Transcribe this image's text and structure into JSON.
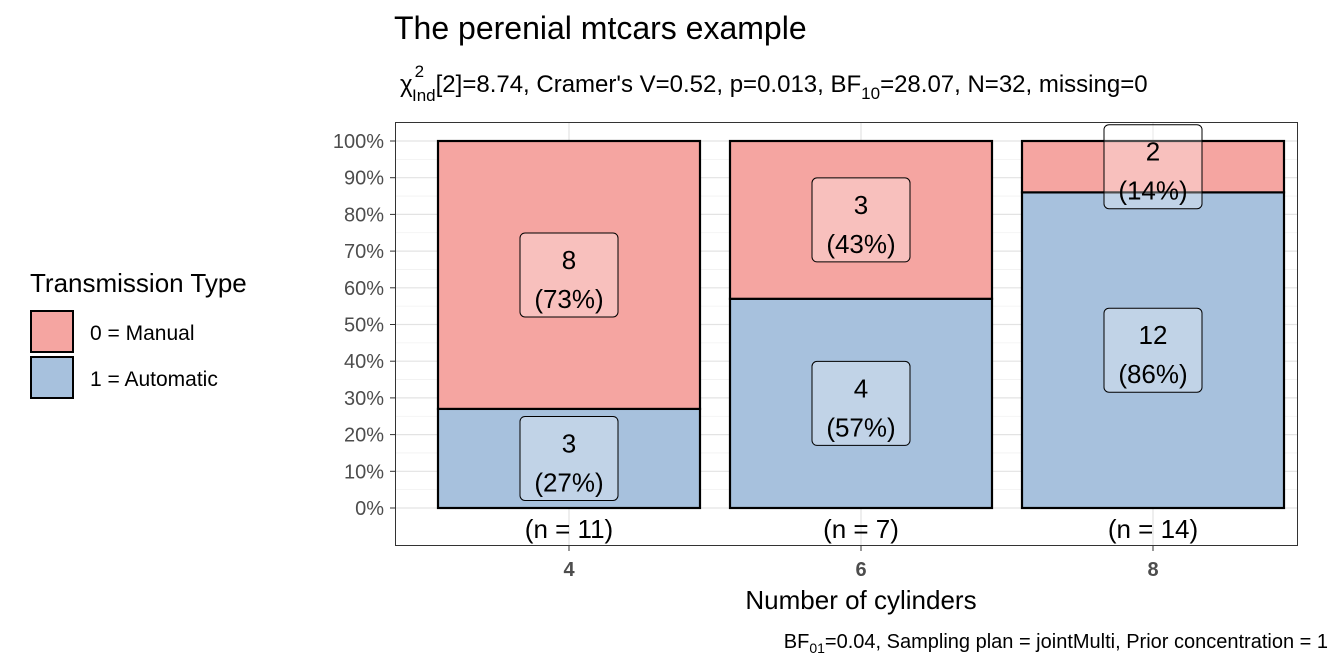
{
  "chart_data": {
    "type": "bar",
    "title": "The perenial mtcars example",
    "subtitle": {
      "chi": "χ",
      "chi_sup": "2",
      "chi_sub": "Ind",
      "after_chi": "[2]=8.74, Cramer's V=0.52, p=0.013, BF",
      "bf_sub": "10",
      "rest": "=28.07, N=32, missing=0"
    },
    "caption": {
      "bf": "BF",
      "bf_sub": "01",
      "rest": "=0.04, Sampling plan = jointMulti, Prior concentration = 1"
    },
    "xlabel": "Number of cylinders",
    "ylabel": "",
    "categories": [
      "4",
      "6",
      "8"
    ],
    "n_labels": [
      "(n = 11)",
      "(n = 7)",
      "(n = 14)"
    ],
    "yticks": [
      "0%",
      "10%",
      "20%",
      "30%",
      "40%",
      "50%",
      "60%",
      "70%",
      "80%",
      "90%",
      "100%"
    ],
    "ylim": [
      0,
      100
    ],
    "stacked": true,
    "percent": true,
    "grid": true,
    "legend": {
      "title": "Transmission Type",
      "position": "left"
    },
    "series": [
      {
        "name": "1 = Automatic",
        "color": "#A7C1DD",
        "counts": [
          3,
          4,
          12
        ],
        "values": [
          27,
          57,
          86
        ],
        "labels": [
          "(27%)",
          "(57%)",
          "(86%)"
        ]
      },
      {
        "name": "0 = Manual",
        "color": "#F5A5A1",
        "counts": [
          8,
          3,
          2
        ],
        "values": [
          73,
          43,
          14
        ],
        "labels": [
          "(73%)",
          "(43%)",
          "(14%)"
        ]
      }
    ]
  }
}
